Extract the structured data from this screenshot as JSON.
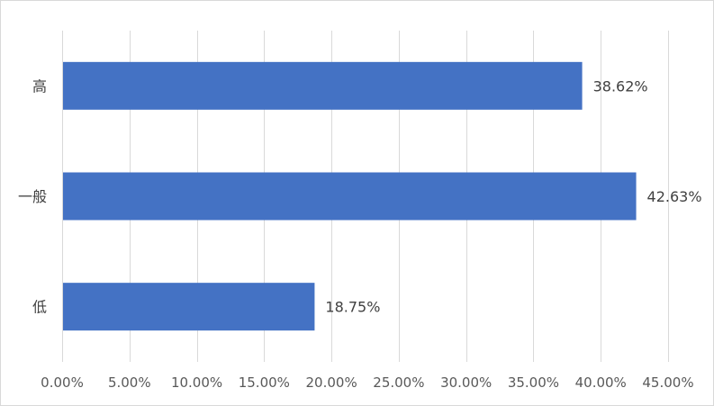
{
  "chart_data": {
    "type": "bar",
    "orientation": "horizontal",
    "categories": [
      "高",
      "一般",
      "低"
    ],
    "values": [
      38.62,
      42.63,
      18.75
    ],
    "data_labels": [
      "38.62%",
      "42.63%",
      "18.75%"
    ],
    "xlim": [
      0,
      45
    ],
    "x_ticks": [
      0,
      5,
      10,
      15,
      20,
      25,
      30,
      35,
      40,
      45
    ],
    "x_tick_labels": [
      "0.00%",
      "5.00%",
      "10.00%",
      "15.00%",
      "20.00%",
      "25.00%",
      "30.00%",
      "35.00%",
      "40.00%",
      "45.00%"
    ],
    "title": "",
    "xlabel": "",
    "ylabel": "",
    "grid": "vertical",
    "legend": "none",
    "bar_color": "#4472c4"
  }
}
